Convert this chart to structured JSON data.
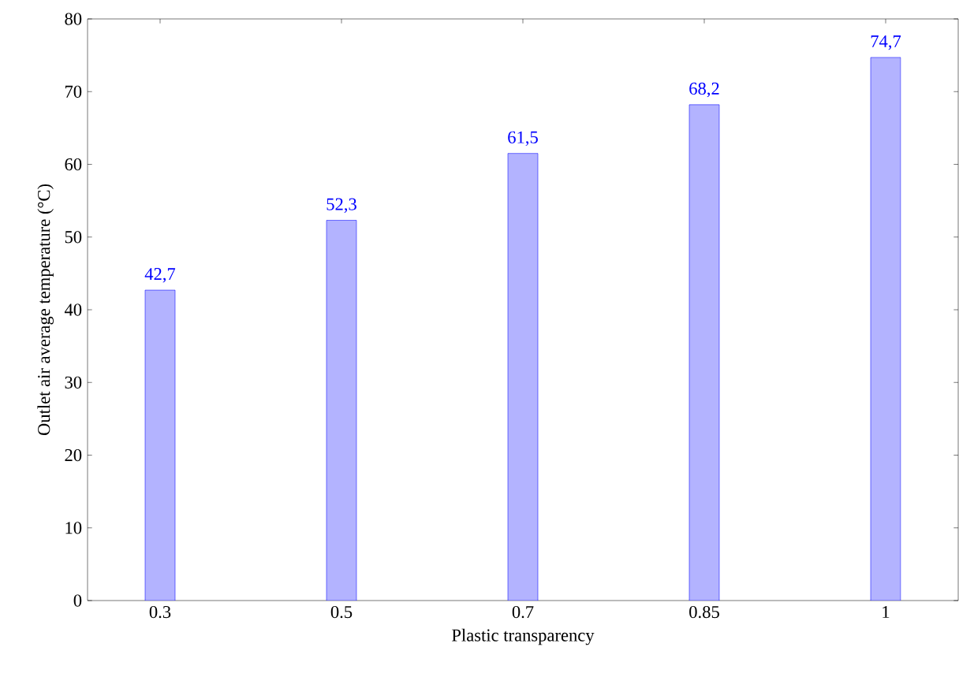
{
  "chart_data": {
    "type": "bar",
    "xlabel": "Plastic transparency",
    "ylabel": "Outlet air average temperature (°C)",
    "categories": [
      "0.3",
      "0.5",
      "0.7",
      "0.85",
      "1"
    ],
    "values": [
      42.7,
      52.3,
      61.5,
      68.2,
      74.7
    ],
    "value_labels": [
      "42,7",
      "52,3",
      "61,5",
      "68,2",
      "74,7"
    ],
    "color": "#b3b3ff",
    "ylim": [
      0,
      80
    ],
    "yticks": [
      0,
      10,
      20,
      30,
      40,
      50,
      60,
      70,
      80
    ],
    "grid": false
  }
}
